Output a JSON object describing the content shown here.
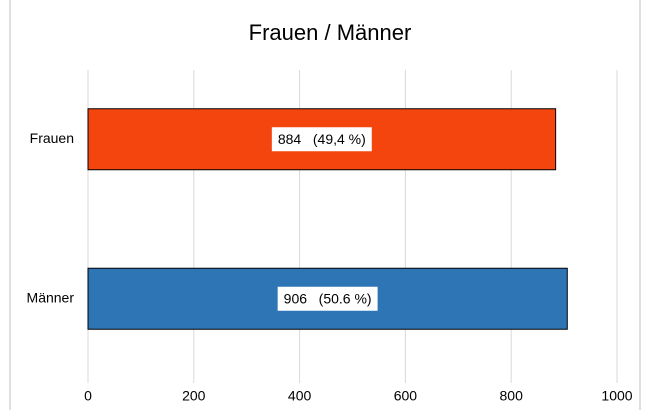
{
  "chart_data": {
    "type": "bar",
    "orientation": "horizontal",
    "title": "Frauen / Männer",
    "categories": [
      "Frauen",
      "Männer"
    ],
    "values": [
      884,
      906
    ],
    "value_labels": [
      "884   (49,4 %)",
      "906   (50.6 %)"
    ],
    "colors": [
      "#f4450f",
      "#2e75b6"
    ],
    "xlim": [
      0,
      1000
    ],
    "xticks": [
      0,
      200,
      400,
      600,
      800,
      1000
    ],
    "grid": true
  }
}
